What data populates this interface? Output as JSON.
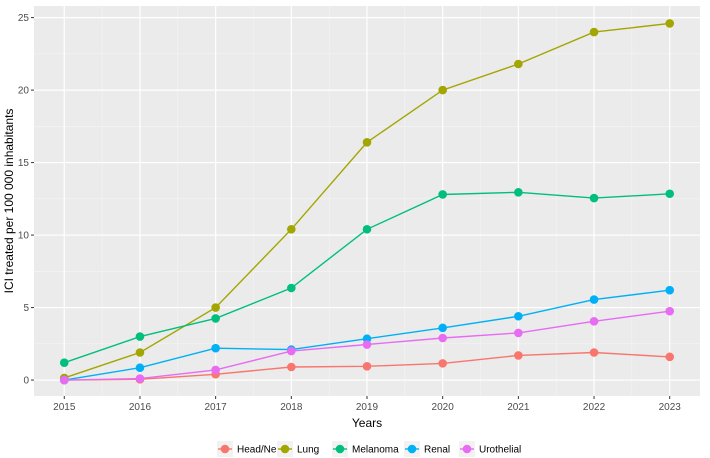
{
  "chart_data": {
    "type": "line",
    "xlabel": "Years",
    "ylabel": "ICI treated per 100 000 inhabitants",
    "x": [
      2015,
      2016,
      2017,
      2018,
      2019,
      2020,
      2021,
      2022,
      2023
    ],
    "xlim": [
      2014.6,
      2023.4
    ],
    "ylim": [
      -1.1,
      25.8
    ],
    "yticks": [
      0,
      5,
      10,
      15,
      20,
      25
    ],
    "grid": true,
    "legend_position": "bottom",
    "series": [
      {
        "name": "Head/Neck",
        "color": "#F8766D",
        "values": [
          0.0,
          0.05,
          0.4,
          0.9,
          0.95,
          1.15,
          1.7,
          1.9,
          1.6
        ]
      },
      {
        "name": "Lung",
        "color": "#A3A500",
        "values": [
          0.15,
          1.9,
          5.0,
          10.4,
          16.4,
          20.0,
          21.8,
          24.0,
          24.6
        ]
      },
      {
        "name": "Melanoma",
        "color": "#00BF7D",
        "values": [
          1.2,
          3.0,
          4.25,
          6.35,
          10.4,
          12.8,
          12.95,
          12.55,
          12.85
        ]
      },
      {
        "name": "Renal",
        "color": "#00B0F6",
        "values": [
          0.0,
          0.85,
          2.2,
          2.1,
          2.85,
          3.6,
          4.4,
          5.55,
          6.2
        ]
      },
      {
        "name": "Urothelial",
        "color": "#E76BF3",
        "values": [
          0.0,
          0.1,
          0.7,
          2.0,
          2.45,
          2.9,
          3.25,
          4.05,
          4.75
        ]
      }
    ]
  }
}
